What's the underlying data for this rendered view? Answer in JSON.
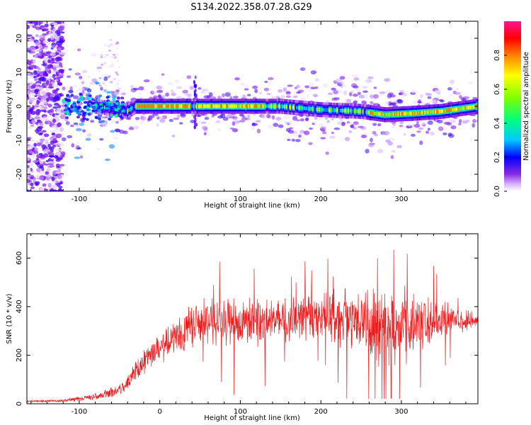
{
  "title": "S134.2022.358.07.28.G29",
  "colors": {
    "snr_line": "#ee1c1c",
    "colormap": [
      "#ffffff",
      "#d9b8ff",
      "#8a2be2",
      "#3d00ff",
      "#0000ff",
      "#00c8ff",
      "#00ff7f",
      "#7fff00",
      "#ffff00",
      "#ff7f00",
      "#ff0000",
      "#ff1493"
    ]
  },
  "chart_data": [
    {
      "type": "heatmap",
      "xlabel": "Height of straight line (km)",
      "ylabel": "Frequency (Hz)",
      "xlim": [
        -165,
        395
      ],
      "ylim": [
        -25,
        25
      ],
      "xticks": [
        -100,
        0,
        100,
        200,
        300
      ],
      "yticks": [
        -20,
        -10,
        0,
        10,
        20
      ],
      "colorbar": {
        "label": "Normalized spectral amplitude",
        "range": [
          0.0,
          1.0
        ],
        "ticks": [
          "0.0",
          "0.2",
          "0.4",
          "0.6",
          "0.8"
        ]
      },
      "ridge": {
        "x": [
          -120,
          -80,
          -50,
          -40,
          -30,
          0,
          50,
          100,
          150,
          200,
          250,
          280,
          320,
          350,
          380,
          395
        ],
        "freq": [
          0,
          0,
          -1,
          -1.5,
          0,
          0,
          0,
          0,
          0,
          -1,
          -1.5,
          -2.5,
          -2,
          -1.5,
          -0.5,
          0
        ]
      }
    },
    {
      "type": "line",
      "xlabel": "Height of straight line (km)",
      "ylabel": "SNR (10 * v/v)",
      "xlim": [
        -165,
        395
      ],
      "ylim": [
        0,
        700
      ],
      "xticks": [
        -100,
        0,
        100,
        200,
        300
      ],
      "yticks": [
        0,
        200,
        400,
        600
      ],
      "envelope": {
        "x": [
          -165,
          -120,
          -90,
          -60,
          -45,
          -30,
          -15,
          0,
          20,
          40,
          60,
          80,
          100,
          130,
          160,
          200,
          230,
          260,
          290,
          320,
          350,
          380,
          395
        ],
        "mean": [
          10,
          12,
          25,
          45,
          65,
          130,
          190,
          230,
          270,
          320,
          340,
          345,
          330,
          340,
          345,
          355,
          350,
          330,
          320,
          330,
          340,
          345,
          340
        ],
        "amplitude": [
          5,
          6,
          15,
          25,
          30,
          55,
          65,
          75,
          90,
          100,
          110,
          120,
          130,
          110,
          110,
          110,
          140,
          170,
          190,
          160,
          90,
          50,
          30
        ]
      }
    }
  ]
}
